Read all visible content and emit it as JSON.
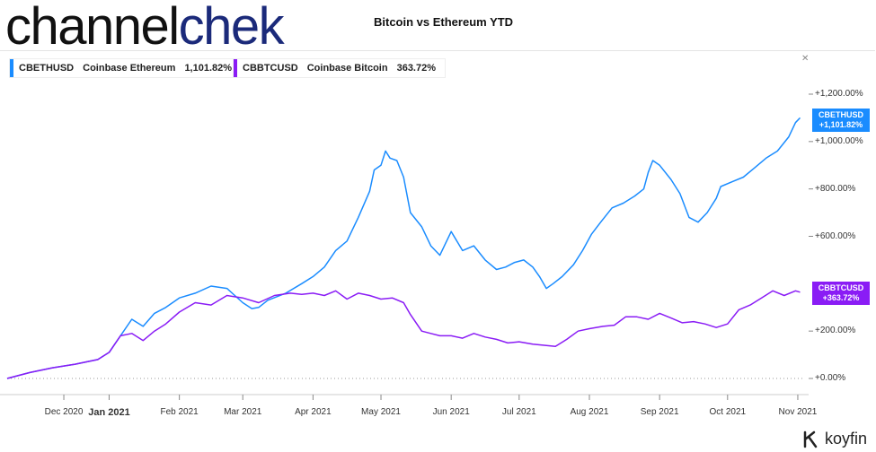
{
  "logo": {
    "part1": "channel",
    "part2": "chek"
  },
  "chart_data": {
    "type": "line",
    "title": "Bitcoin vs Ethereum YTD",
    "xlabel": "",
    "ylabel": "",
    "ylim": [
      -60,
      1300
    ],
    "y_ticks": [
      "+1,200.00%",
      "+1,000.00%",
      "+800.00%",
      "+600.00%",
      "+200.00%",
      "+0.00%"
    ],
    "y_tick_values": [
      1200,
      1000,
      800,
      600,
      200,
      0
    ],
    "x_ticks": [
      "Dec 2020",
      "Jan 2021",
      "Feb 2021",
      "Mar 2021",
      "Apr 2021",
      "May 2021",
      "Jun 2021",
      "Jul 2021",
      "Aug 2021",
      "Sep 2021",
      "Oct 2021",
      "Nov 2021"
    ],
    "x_tick_days": [
      -20,
      0,
      31,
      59,
      90,
      120,
      151,
      181,
      212,
      243,
      273,
      304
    ],
    "x_tick_bold": "Jan 2021",
    "x_range_days": [
      -45,
      306
    ],
    "grid": false,
    "legend_position": "top-left",
    "series": [
      {
        "name": "CBETHUSD",
        "description": "Coinbase Ethereum",
        "last_value_label": "1,101.82%",
        "tag_label": "+1,101.82%",
        "color": "#1a8cff",
        "x": [
          -45,
          -35,
          -25,
          -15,
          -5,
          0,
          5,
          10,
          15,
          20,
          25,
          31,
          38,
          45,
          52,
          59,
          63,
          66,
          70,
          78,
          85,
          90,
          95,
          100,
          105,
          110,
          115,
          117,
          120,
          122,
          124,
          127,
          130,
          133,
          138,
          142,
          146,
          151,
          156,
          161,
          166,
          171,
          175,
          179,
          183,
          187,
          190,
          193,
          196,
          200,
          205,
          209,
          213,
          217,
          222,
          227,
          232,
          236,
          238,
          240,
          243,
          248,
          252,
          256,
          260,
          264,
          268,
          270,
          275,
          280,
          285,
          290,
          295,
          300,
          303,
          305
        ],
        "y": [
          0,
          25,
          45,
          60,
          80,
          110,
          180,
          250,
          220,
          275,
          300,
          340,
          360,
          390,
          380,
          320,
          295,
          300,
          330,
          360,
          400,
          430,
          470,
          540,
          580,
          680,
          790,
          880,
          900,
          960,
          930,
          920,
          850,
          700,
          640,
          560,
          520,
          620,
          540,
          560,
          500,
          460,
          470,
          490,
          500,
          470,
          430,
          380,
          400,
          430,
          480,
          540,
          610,
          660,
          720,
          740,
          770,
          800,
          870,
          920,
          900,
          840,
          780,
          680,
          660,
          700,
          760,
          810,
          830,
          850,
          890,
          930,
          960,
          1020,
          1080,
          1100
        ]
      },
      {
        "name": "CBBTCUSD",
        "description": "Coinbase Bitcoin",
        "last_value_label": "363.72%",
        "tag_label": "+363.72%",
        "color": "#8a1cf5",
        "x": [
          -45,
          -35,
          -25,
          -15,
          -5,
          0,
          5,
          10,
          15,
          20,
          25,
          31,
          38,
          45,
          52,
          59,
          66,
          73,
          80,
          85,
          90,
          95,
          100,
          105,
          110,
          115,
          120,
          125,
          130,
          133,
          138,
          142,
          146,
          151,
          156,
          161,
          166,
          171,
          176,
          181,
          187,
          192,
          197,
          202,
          207,
          212,
          218,
          223,
          228,
          233,
          238,
          243,
          248,
          253,
          258,
          263,
          268,
          273,
          278,
          283,
          288,
          293,
          298,
          303,
          305
        ],
        "y": [
          0,
          25,
          45,
          60,
          80,
          110,
          180,
          190,
          160,
          200,
          230,
          280,
          320,
          310,
          350,
          340,
          320,
          350,
          360,
          355,
          360,
          350,
          370,
          335,
          360,
          350,
          335,
          340,
          320,
          270,
          200,
          190,
          180,
          180,
          170,
          190,
          175,
          165,
          150,
          155,
          145,
          140,
          135,
          165,
          200,
          210,
          220,
          225,
          260,
          260,
          250,
          275,
          255,
          235,
          240,
          230,
          215,
          230,
          290,
          310,
          340,
          370,
          350,
          370,
          364
        ]
      }
    ]
  },
  "legend": {
    "eth": {
      "ticker": "CBETHUSD",
      "desc": "Coinbase Ethereum",
      "value": "1,101.82%"
    },
    "btc": {
      "ticker": "CBBTCUSD",
      "desc": "Coinbase Bitcoin",
      "value": "363.72%"
    }
  },
  "tags": {
    "eth": {
      "ticker": "CBETHUSD",
      "value": "+1,101.82%"
    },
    "btc": {
      "ticker": "CBBTCUSD",
      "value": "+363.72%"
    }
  },
  "brand": {
    "name": "koyfin"
  },
  "colors": {
    "eth": "#1a8cff",
    "btc": "#8a1cf5",
    "logo_accent": "#1b2a7a"
  }
}
